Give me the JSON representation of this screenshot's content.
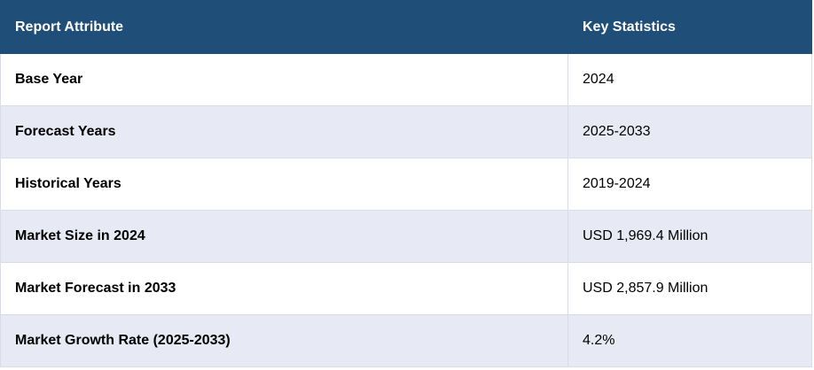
{
  "header": {
    "attribute_label": "Report Attribute",
    "value_label": "Key Statistics"
  },
  "rows": [
    {
      "attribute": "Base Year",
      "value": "2024"
    },
    {
      "attribute": "Forecast Years",
      "value": "2025-2033"
    },
    {
      "attribute": "Historical Years",
      "value": "2019-2024"
    },
    {
      "attribute": "Market Size in 2024",
      "value": "USD 1,969.4 Million"
    },
    {
      "attribute": "Market Forecast in 2033",
      "value": "USD 2,857.9 Million"
    },
    {
      "attribute": "Market Growth Rate (2025-2033)",
      "value": "4.2%"
    }
  ],
  "colors": {
    "header_background": "#1f4e79",
    "header_text": "#ffffff",
    "row_alt_background": "#e7eaf4",
    "row_background": "#ffffff",
    "border": "#d9dce6"
  }
}
